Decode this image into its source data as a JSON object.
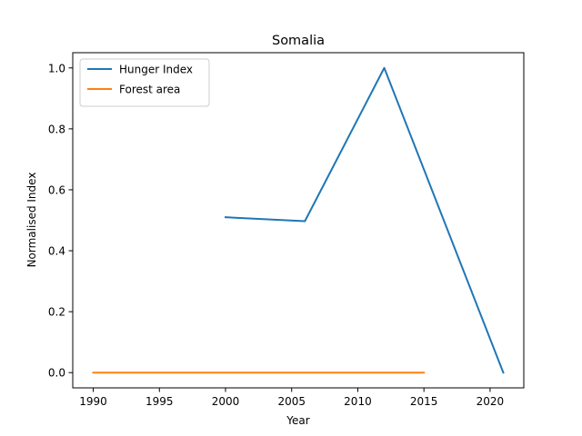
{
  "chart_data": {
    "type": "line",
    "title": "Somalia",
    "xlabel": "Year",
    "ylabel": "Normalised Index",
    "xlim": [
      1988.45,
      2022.55
    ],
    "ylim": [
      -0.05,
      1.05
    ],
    "xticks": [
      1990,
      1995,
      2000,
      2005,
      2010,
      2015,
      2020
    ],
    "yticks": [
      0.0,
      0.2,
      0.4,
      0.6,
      0.8,
      1.0
    ],
    "xtick_labels": [
      "1990",
      "1995",
      "2000",
      "2005",
      "2010",
      "2015",
      "2020"
    ],
    "ytick_labels": [
      "0.0",
      "0.2",
      "0.4",
      "0.6",
      "0.8",
      "1.0"
    ],
    "grid": false,
    "legend_position": "top-left",
    "series": [
      {
        "name": "Hunger Index",
        "color": "#1f77b4",
        "x": [
          2000,
          2006,
          2012,
          2021
        ],
        "y": [
          0.51,
          0.497,
          1.0,
          0.0
        ]
      },
      {
        "name": "Forest area",
        "color": "#ff7f0e",
        "x": [
          1990,
          1995,
          2000,
          2005,
          2010,
          2015
        ],
        "y": [
          0.0,
          0.0,
          0.0,
          0.0,
          0.0,
          0.0
        ]
      }
    ]
  }
}
